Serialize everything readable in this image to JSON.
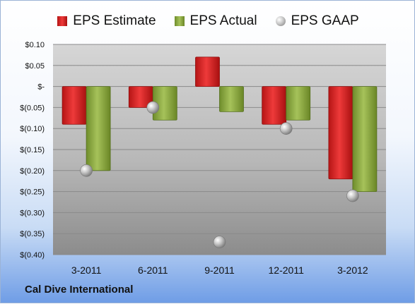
{
  "chart_data": {
    "type": "bar",
    "title": "",
    "xlabel": "",
    "ylabel": "",
    "categories": [
      "3-2011",
      "6-2011",
      "9-2011",
      "12-2011",
      "3-2012"
    ],
    "series": [
      {
        "name": "EPS Estimate",
        "kind": "bar",
        "color": "#d42020",
        "values": [
          -0.09,
          -0.05,
          0.07,
          -0.09,
          -0.22
        ]
      },
      {
        "name": "EPS Actual",
        "kind": "bar",
        "color": "#8cad3f",
        "values": [
          -0.2,
          -0.08,
          -0.06,
          -0.08,
          -0.25
        ]
      },
      {
        "name": "EPS GAAP",
        "kind": "scatter",
        "color": "#b8b8b8",
        "values": [
          -0.2,
          -0.05,
          -0.37,
          -0.1,
          -0.26
        ]
      }
    ],
    "ylim": [
      -0.4,
      0.1
    ],
    "yticks": [
      0.1,
      0.05,
      0,
      -0.05,
      -0.1,
      -0.15,
      -0.2,
      -0.25,
      -0.3,
      -0.35,
      -0.4
    ],
    "ytick_labels": [
      "$0.10",
      "$0.05",
      "$-",
      "$(0.05)",
      "$(0.10)",
      "$(0.15)",
      "$(0.20)",
      "$(0.25)",
      "$(0.30)",
      "$(0.35)",
      "$(0.40)"
    ],
    "grid": true,
    "legend": "top-center"
  },
  "company": "Cal Dive International"
}
